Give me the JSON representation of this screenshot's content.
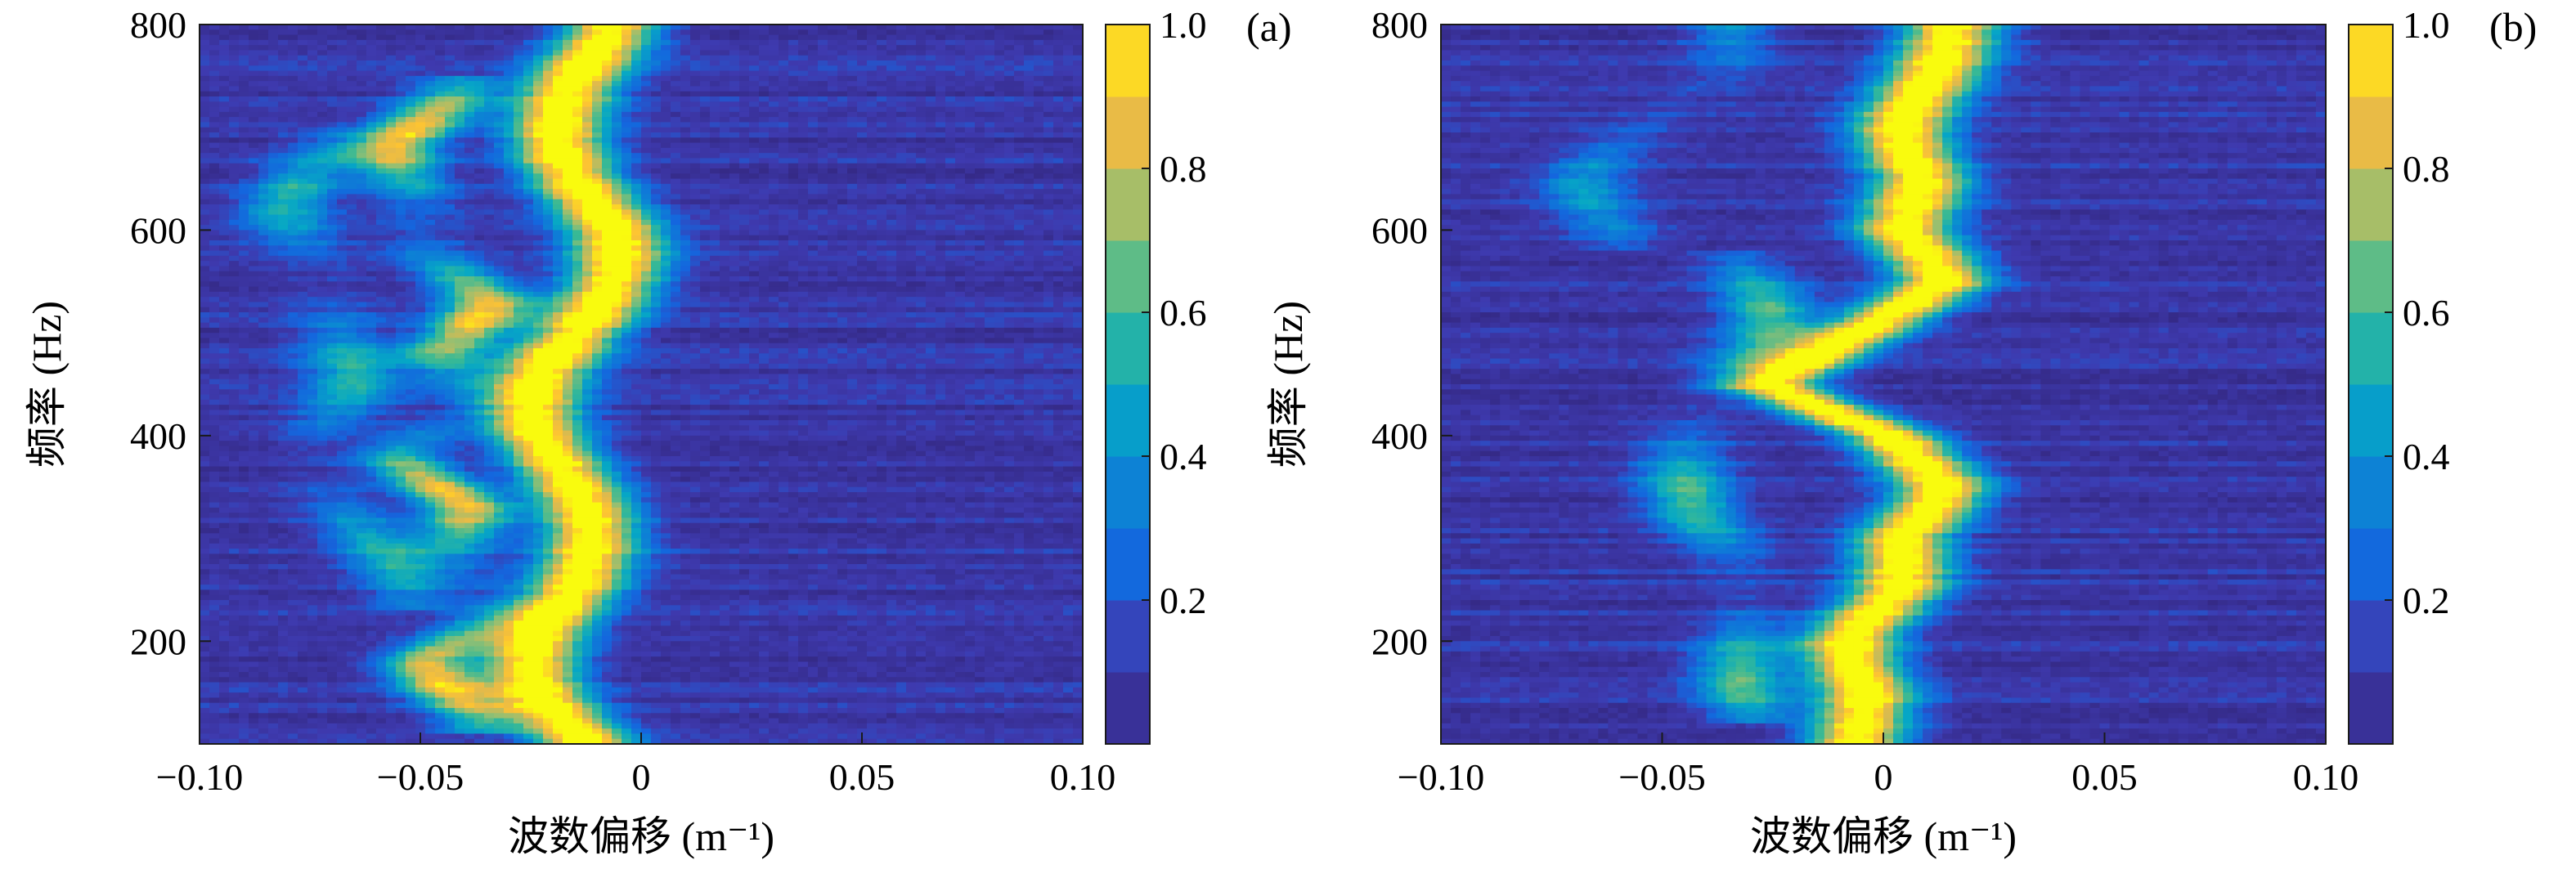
{
  "chart_data": [
    {
      "type": "heatmap",
      "panel_label": "(a)",
      "xlabel": "波数偏移 (m⁻¹)",
      "ylabel": "频率 (Hz)",
      "xlim": [
        -0.1,
        0.1
      ],
      "ylim": [
        100,
        800
      ],
      "x_ticks": [
        -0.1,
        -0.05,
        0,
        0.05,
        0.1
      ],
      "x_tick_labels": [
        "−0.10",
        "−0.05",
        "0",
        "0.05",
        "0.10"
      ],
      "y_ticks": [
        200,
        400,
        600,
        800
      ],
      "y_tick_labels": [
        "200",
        "400",
        "600",
        "800"
      ],
      "colorbar": {
        "range": [
          0,
          1.0
        ],
        "ticks": [
          0.2,
          0.4,
          0.6,
          0.8,
          1.0
        ],
        "tick_labels": [
          "0.2",
          "0.4",
          "0.6",
          "0.8",
          "1.0"
        ],
        "colormap": "parula"
      },
      "ridges": [
        {
          "freq": [
            100,
            150,
            200,
            250,
            300,
            350,
            400,
            450,
            500,
            550,
            600,
            650,
            700,
            750,
            800
          ],
          "wavenumber": [
            -0.016,
            -0.02,
            -0.018,
            -0.015,
            -0.017,
            -0.019,
            -0.02,
            -0.018,
            -0.014,
            -0.012,
            -0.01,
            -0.012,
            -0.013,
            -0.014,
            -0.012
          ],
          "amplitude": 1.0
        },
        {
          "freq": [
            130,
            180,
            230,
            280,
            330,
            380,
            430,
            480,
            530,
            580,
            630,
            680,
            730
          ],
          "wavenumber": [
            -0.032,
            -0.045,
            -0.035,
            -0.05,
            -0.04,
            -0.05,
            -0.035,
            -0.048,
            -0.04,
            -0.05,
            -0.045,
            -0.052,
            -0.045
          ],
          "amplitude": 0.82
        },
        {
          "freq": [
            250,
            320,
            380,
            440,
            500,
            560,
            620,
            680
          ],
          "wavenumber": [
            -0.058,
            -0.062,
            -0.07,
            -0.068,
            -0.074,
            -0.07,
            -0.075,
            -0.072
          ],
          "amplitude": 0.45
        }
      ]
    },
    {
      "type": "heatmap",
      "panel_label": "(b)",
      "xlabel": "波数偏移 (m⁻¹)",
      "ylabel": "频率 (Hz)",
      "xlim": [
        -0.1,
        0.1
      ],
      "ylim": [
        100,
        800
      ],
      "x_ticks": [
        -0.1,
        -0.05,
        0,
        0.05,
        0.1
      ],
      "x_tick_labels": [
        "−0.10",
        "−0.05",
        "0",
        "0.05",
        "0.10"
      ],
      "y_ticks": [
        200,
        400,
        600,
        800
      ],
      "y_tick_labels": [
        "200",
        "400",
        "600",
        "800"
      ],
      "colorbar": {
        "range": [
          0,
          1.0
        ],
        "ticks": [
          0.2,
          0.4,
          0.6,
          0.8,
          1.0
        ],
        "tick_labels": [
          "0.2",
          "0.4",
          "0.6",
          "0.8",
          "1.0"
        ],
        "colormap": "parula"
      },
      "ridges": [
        {
          "freq": [
            100,
            150,
            200,
            250,
            300,
            350,
            400,
            450,
            500,
            550,
            600,
            650,
            700,
            750,
            800
          ],
          "wavenumber": [
            -0.01,
            0.0,
            -0.002,
            0.004,
            -0.002,
            0.01,
            0.005,
            -0.02,
            -0.005,
            0.008,
            0.0,
            0.012,
            0.01,
            0.012,
            0.01
          ],
          "amplitude": 1.0
        },
        {
          "freq": [
            140,
            200,
            260,
            320,
            380,
            440,
            500,
            560
          ],
          "wavenumber": [
            -0.025,
            -0.03,
            -0.038,
            -0.045,
            -0.04,
            -0.036,
            -0.03,
            -0.035
          ],
          "amplitude": 0.55
        },
        {
          "freq": [
            600,
            650,
            700,
            750,
            800
          ],
          "wavenumber": [
            -0.055,
            -0.065,
            -0.06,
            -0.04,
            -0.035
          ],
          "amplitude": 0.35
        }
      ]
    }
  ]
}
